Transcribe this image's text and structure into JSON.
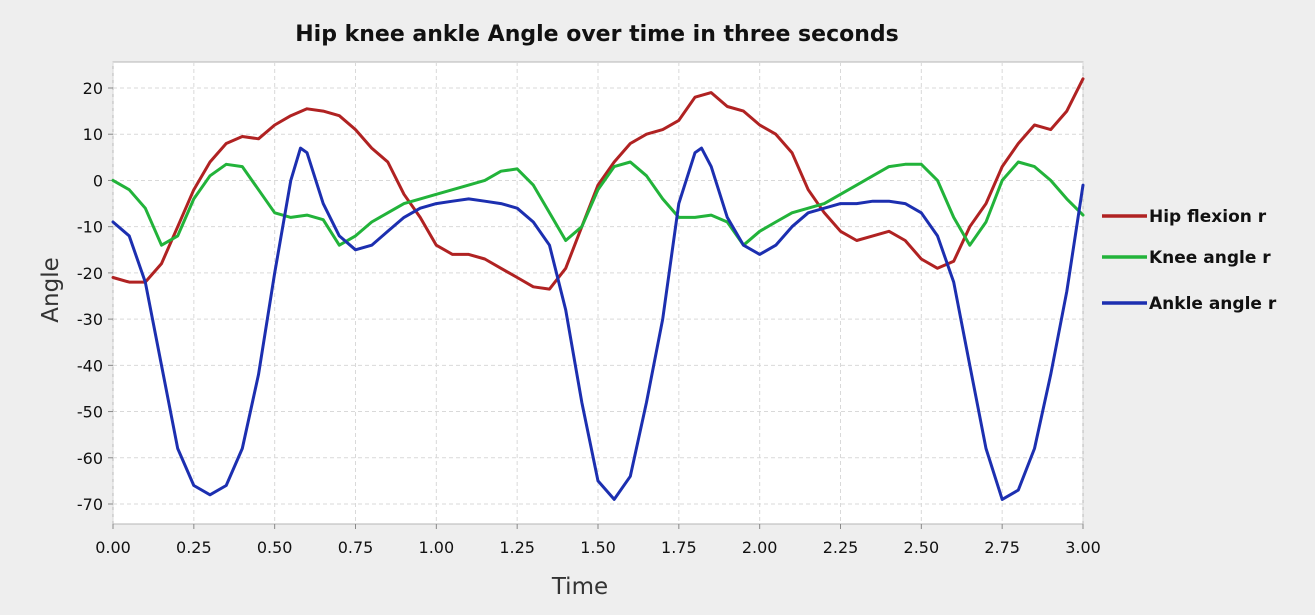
{
  "chart_data": {
    "type": "line",
    "title": "Hip knee ankle Angle over time in three seconds",
    "xlabel": "Time",
    "ylabel": "Angle",
    "xlim": [
      0,
      3.0
    ],
    "ylim": [
      -73,
      25
    ],
    "xticks": [
      "0.00",
      "0.25",
      "0.50",
      "0.75",
      "1.00",
      "1.25",
      "1.50",
      "1.75",
      "2.00",
      "2.25",
      "2.50",
      "2.75",
      "3.00"
    ],
    "yticks": [
      "20",
      "10",
      "0",
      "-10",
      "-20",
      "-30",
      "-40",
      "-50",
      "-60",
      "-70"
    ],
    "grid": true,
    "legend_position": "right",
    "series": [
      {
        "name": "Hip flexion r",
        "color": "#b02222",
        "points": [
          [
            0.0,
            -21
          ],
          [
            0.05,
            -22
          ],
          [
            0.1,
            -22
          ],
          [
            0.15,
            -18
          ],
          [
            0.2,
            -10
          ],
          [
            0.25,
            -2
          ],
          [
            0.3,
            4
          ],
          [
            0.35,
            8
          ],
          [
            0.4,
            9.5
          ],
          [
            0.45,
            9
          ],
          [
            0.5,
            12
          ],
          [
            0.55,
            14
          ],
          [
            0.6,
            15.5
          ],
          [
            0.65,
            15
          ],
          [
            0.7,
            14
          ],
          [
            0.75,
            11
          ],
          [
            0.8,
            7
          ],
          [
            0.85,
            4
          ],
          [
            0.9,
            -3
          ],
          [
            0.95,
            -8
          ],
          [
            1.0,
            -14
          ],
          [
            1.05,
            -16
          ],
          [
            1.1,
            -16
          ],
          [
            1.15,
            -17
          ],
          [
            1.2,
            -19
          ],
          [
            1.25,
            -21
          ],
          [
            1.3,
            -23
          ],
          [
            1.35,
            -23.5
          ],
          [
            1.4,
            -19
          ],
          [
            1.45,
            -10
          ],
          [
            1.5,
            -1
          ],
          [
            1.55,
            4
          ],
          [
            1.6,
            8
          ],
          [
            1.65,
            10
          ],
          [
            1.7,
            11
          ],
          [
            1.75,
            13
          ],
          [
            1.8,
            18
          ],
          [
            1.85,
            19
          ],
          [
            1.9,
            16
          ],
          [
            1.95,
            15
          ],
          [
            2.0,
            12
          ],
          [
            2.05,
            10
          ],
          [
            2.1,
            6
          ],
          [
            2.15,
            -2
          ],
          [
            2.2,
            -7
          ],
          [
            2.25,
            -11
          ],
          [
            2.3,
            -13
          ],
          [
            2.35,
            -12
          ],
          [
            2.4,
            -11
          ],
          [
            2.45,
            -13
          ],
          [
            2.5,
            -17
          ],
          [
            2.55,
            -19
          ],
          [
            2.6,
            -17.5
          ],
          [
            2.65,
            -10
          ],
          [
            2.7,
            -5
          ],
          [
            2.75,
            3
          ],
          [
            2.8,
            8
          ],
          [
            2.85,
            12
          ],
          [
            2.9,
            11
          ],
          [
            2.95,
            15
          ],
          [
            3.0,
            22
          ]
        ]
      },
      {
        "name": "Knee angle r",
        "color": "#22b33a",
        "points": [
          [
            0.0,
            0
          ],
          [
            0.05,
            -2
          ],
          [
            0.1,
            -6
          ],
          [
            0.15,
            -14
          ],
          [
            0.2,
            -12
          ],
          [
            0.25,
            -4
          ],
          [
            0.3,
            1
          ],
          [
            0.35,
            3.5
          ],
          [
            0.4,
            3
          ],
          [
            0.45,
            -2
          ],
          [
            0.5,
            -7
          ],
          [
            0.55,
            -8
          ],
          [
            0.6,
            -7.5
          ],
          [
            0.65,
            -8.5
          ],
          [
            0.7,
            -14
          ],
          [
            0.75,
            -12
          ],
          [
            0.8,
            -9
          ],
          [
            0.85,
            -7
          ],
          [
            0.9,
            -5
          ],
          [
            0.95,
            -4
          ],
          [
            1.0,
            -3
          ],
          [
            1.05,
            -2
          ],
          [
            1.1,
            -1
          ],
          [
            1.15,
            0
          ],
          [
            1.2,
            2
          ],
          [
            1.25,
            2.5
          ],
          [
            1.3,
            -1
          ],
          [
            1.35,
            -7
          ],
          [
            1.4,
            -13
          ],
          [
            1.45,
            -10
          ],
          [
            1.5,
            -2
          ],
          [
            1.55,
            3
          ],
          [
            1.6,
            4
          ],
          [
            1.65,
            1
          ],
          [
            1.7,
            -4
          ],
          [
            1.75,
            -8
          ],
          [
            1.8,
            -8
          ],
          [
            1.85,
            -7.5
          ],
          [
            1.9,
            -9
          ],
          [
            1.95,
            -14
          ],
          [
            2.0,
            -11
          ],
          [
            2.05,
            -9
          ],
          [
            2.1,
            -7
          ],
          [
            2.15,
            -6
          ],
          [
            2.2,
            -5
          ],
          [
            2.25,
            -3
          ],
          [
            2.3,
            -1
          ],
          [
            2.35,
            1
          ],
          [
            2.4,
            3
          ],
          [
            2.45,
            3.5
          ],
          [
            2.5,
            3.5
          ],
          [
            2.55,
            0
          ],
          [
            2.6,
            -8
          ],
          [
            2.65,
            -14
          ],
          [
            2.7,
            -9
          ],
          [
            2.75,
            0
          ],
          [
            2.8,
            4
          ],
          [
            2.85,
            3
          ],
          [
            2.9,
            0
          ],
          [
            2.95,
            -4
          ],
          [
            3.0,
            -7.5
          ]
        ]
      },
      {
        "name": "Ankle angle r",
        "color": "#1c2fb0",
        "points": [
          [
            0.0,
            -9
          ],
          [
            0.05,
            -12
          ],
          [
            0.1,
            -22
          ],
          [
            0.15,
            -40
          ],
          [
            0.2,
            -58
          ],
          [
            0.25,
            -66
          ],
          [
            0.3,
            -68
          ],
          [
            0.35,
            -66
          ],
          [
            0.4,
            -58
          ],
          [
            0.45,
            -42
          ],
          [
            0.5,
            -20
          ],
          [
            0.55,
            0
          ],
          [
            0.58,
            7
          ],
          [
            0.6,
            6
          ],
          [
            0.65,
            -5
          ],
          [
            0.7,
            -12
          ],
          [
            0.75,
            -15
          ],
          [
            0.8,
            -14
          ],
          [
            0.85,
            -11
          ],
          [
            0.9,
            -8
          ],
          [
            0.95,
            -6
          ],
          [
            1.0,
            -5
          ],
          [
            1.05,
            -4.5
          ],
          [
            1.1,
            -4
          ],
          [
            1.15,
            -4.5
          ],
          [
            1.2,
            -5
          ],
          [
            1.25,
            -6
          ],
          [
            1.3,
            -9
          ],
          [
            1.35,
            -14
          ],
          [
            1.4,
            -28
          ],
          [
            1.45,
            -48
          ],
          [
            1.5,
            -65
          ],
          [
            1.55,
            -69
          ],
          [
            1.6,
            -64
          ],
          [
            1.65,
            -48
          ],
          [
            1.7,
            -30
          ],
          [
            1.75,
            -5
          ],
          [
            1.8,
            6
          ],
          [
            1.82,
            7
          ],
          [
            1.85,
            3
          ],
          [
            1.9,
            -8
          ],
          [
            1.95,
            -14
          ],
          [
            2.0,
            -16
          ],
          [
            2.05,
            -14
          ],
          [
            2.1,
            -10
          ],
          [
            2.15,
            -7
          ],
          [
            2.2,
            -6
          ],
          [
            2.25,
            -5
          ],
          [
            2.3,
            -5
          ],
          [
            2.35,
            -4.5
          ],
          [
            2.4,
            -4.5
          ],
          [
            2.45,
            -5
          ],
          [
            2.5,
            -7
          ],
          [
            2.55,
            -12
          ],
          [
            2.6,
            -22
          ],
          [
            2.65,
            -40
          ],
          [
            2.7,
            -58
          ],
          [
            2.75,
            -69
          ],
          [
            2.8,
            -67
          ],
          [
            2.85,
            -58
          ],
          [
            2.9,
            -42
          ],
          [
            2.95,
            -24
          ],
          [
            3.0,
            -1
          ]
        ]
      }
    ]
  }
}
